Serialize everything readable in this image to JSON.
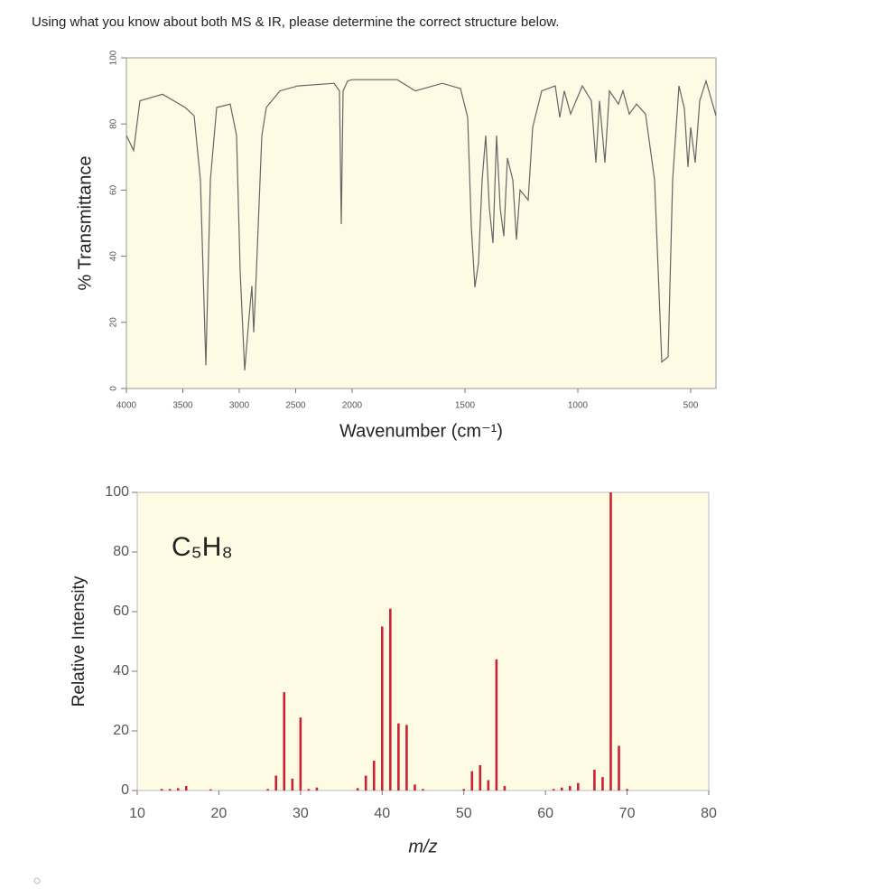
{
  "question": "Using what you know about both MS & IR, please determine the correct structure below.",
  "chart_data": [
    {
      "type": "line",
      "ylabel": "% Transmittance",
      "xlabel": "Wavenumber (cm⁻¹)",
      "x": [
        4000,
        3936,
        3880,
        3680,
        3480,
        3400,
        3344,
        3296,
        3256,
        3200,
        3080,
        3024,
        2992,
        2952,
        2912,
        2888,
        2872,
        2848,
        2800,
        2760,
        2640,
        2480,
        2160,
        2112,
        2096,
        2080,
        2040,
        2000,
        1800,
        1720,
        1600,
        1520,
        1488,
        1472,
        1456,
        1440,
        1424,
        1408,
        1392,
        1376,
        1360,
        1344,
        1328,
        1312,
        1288,
        1272,
        1256,
        1220,
        1200,
        1160,
        1100,
        1080,
        1060,
        1032,
        1008,
        980,
        940,
        920,
        904,
        880,
        860,
        820,
        800,
        772,
        740,
        700,
        660,
        628,
        600,
        580,
        552,
        528,
        512,
        500,
        480,
        460,
        432,
        388
      ],
      "values": [
        76.5,
        72,
        87,
        89,
        85,
        82.5,
        63,
        7,
        63,
        85,
        86,
        76.5,
        35.5,
        5.5,
        22,
        31,
        17,
        35.5,
        76.5,
        85,
        90,
        91.5,
        92.3,
        90,
        49.7,
        90,
        93,
        93.4,
        93.4,
        90,
        92.3,
        90.7,
        82,
        49,
        30.6,
        38,
        63,
        76.5,
        54.6,
        44,
        76.5,
        54.6,
        46,
        69.7,
        63,
        45,
        60,
        57,
        79,
        90,
        91.5,
        82,
        90,
        83,
        87,
        91.5,
        87,
        68.3,
        87,
        68.3,
        90,
        86,
        90,
        83,
        86,
        83,
        63,
        8,
        9.6,
        63,
        91.5,
        84.7,
        67,
        79,
        68.3,
        87,
        93,
        82.5
      ],
      "color": "#666666",
      "xlim": [
        4000,
        388
      ],
      "x_break": 2000,
      "xticks": [
        4000,
        3500,
        3000,
        2500,
        2000,
        1500,
        1000,
        500
      ],
      "ylim": [
        0,
        100
      ],
      "yticks": [
        0,
        20,
        40,
        60,
        80,
        100
      ]
    },
    {
      "type": "bar",
      "ylabel": "Relative Intensity",
      "xlabel": "m/z",
      "annotation": "C₅H₈",
      "x": [
        13,
        14,
        15,
        16,
        19,
        26,
        27,
        28,
        29,
        30,
        31,
        32,
        37,
        38,
        39,
        40,
        41,
        42,
        43,
        44,
        45,
        50,
        51,
        52,
        53,
        54,
        55,
        61,
        62,
        63,
        64,
        66,
        67,
        68,
        69,
        70
      ],
      "values": [
        0.5,
        0.5,
        0.8,
        1.5,
        0.4,
        0.5,
        5,
        33,
        4,
        24.5,
        0.5,
        1,
        0.8,
        5,
        10,
        55,
        61,
        22.5,
        22,
        2,
        0.5,
        0.5,
        6.5,
        8.5,
        3.5,
        44,
        1.5,
        0.5,
        1,
        1.5,
        2.5,
        7,
        4.5,
        100,
        15,
        0.5
      ],
      "color": "#cc2233",
      "xlim": [
        10,
        80
      ],
      "xticks": [
        10,
        20,
        30,
        40,
        50,
        60,
        70,
        80
      ],
      "ylim": [
        0,
        100
      ],
      "yticks": [
        0,
        20,
        40,
        60,
        80,
        100
      ]
    }
  ]
}
